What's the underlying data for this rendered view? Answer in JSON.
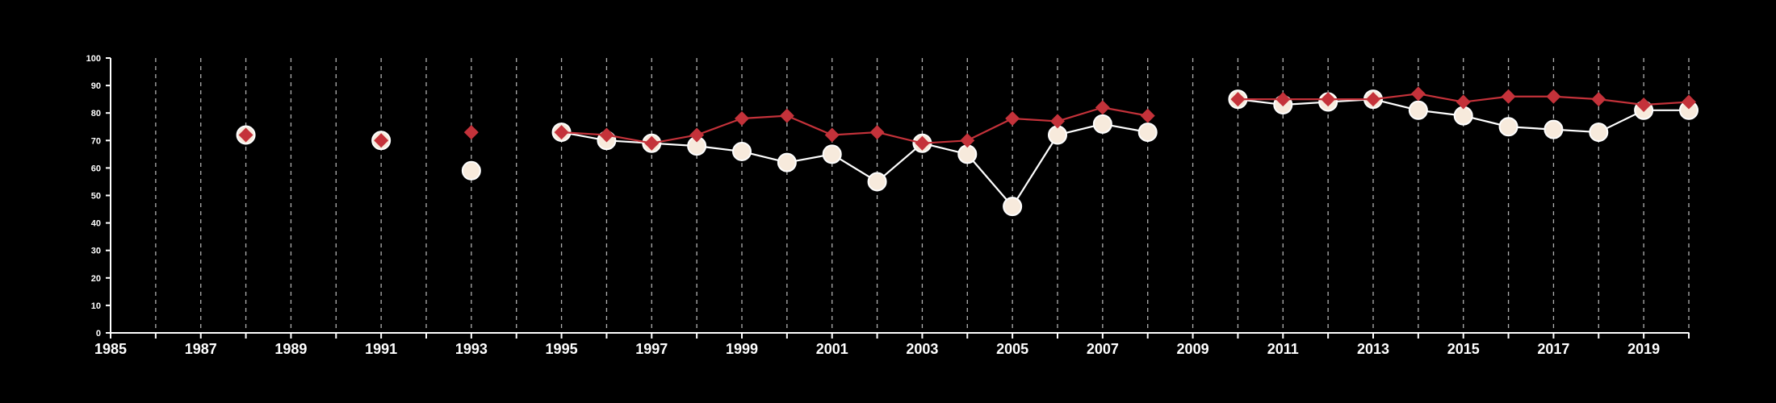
{
  "chart_data": {
    "type": "line",
    "title": "",
    "xlabel": "",
    "ylabel": "",
    "xlim": [
      1985,
      2020
    ],
    "ylim": [
      0,
      100
    ],
    "y_ticks": [
      0,
      10,
      20,
      30,
      40,
      50,
      60,
      70,
      80,
      90,
      100
    ],
    "x_tick_labels": [
      1985,
      1987,
      1989,
      1991,
      1993,
      1995,
      1997,
      1999,
      2001,
      2003,
      2005,
      2007,
      2009,
      2011,
      2013,
      2015,
      2017,
      2019
    ],
    "grid": "vertical dashed lines at every year",
    "legend": "none",
    "series": [
      {
        "marker": "circle",
        "color": "#ffffff",
        "fill": "#f7eadc",
        "points": [
          [
            1988,
            72
          ],
          [
            1991,
            70
          ],
          [
            1993,
            59
          ],
          [
            1995,
            73
          ],
          [
            1996,
            70
          ],
          [
            1997,
            69
          ],
          [
            1998,
            68
          ],
          [
            1999,
            66
          ],
          [
            2000,
            62
          ],
          [
            2001,
            65
          ],
          [
            2002,
            55
          ],
          [
            2003,
            69
          ],
          [
            2004,
            65
          ],
          [
            2005,
            46
          ],
          [
            2006,
            72
          ],
          [
            2007,
            76
          ],
          [
            2008,
            73
          ],
          [
            2010,
            85
          ],
          [
            2011,
            83
          ],
          [
            2012,
            84
          ],
          [
            2013,
            85
          ],
          [
            2014,
            81
          ],
          [
            2015,
            79
          ],
          [
            2016,
            75
          ],
          [
            2017,
            74
          ],
          [
            2018,
            73
          ],
          [
            2019,
            81
          ],
          [
            2020,
            81
          ]
        ]
      },
      {
        "marker": "diamond",
        "color": "#c4323a",
        "points": [
          [
            1988,
            72
          ],
          [
            1991,
            70
          ],
          [
            1993,
            73
          ],
          [
            1995,
            73
          ],
          [
            1996,
            72
          ],
          [
            1997,
            69
          ],
          [
            1998,
            72
          ],
          [
            1999,
            78
          ],
          [
            2000,
            79
          ],
          [
            2001,
            72
          ],
          [
            2002,
            73
          ],
          [
            2003,
            69
          ],
          [
            2004,
            70
          ],
          [
            2005,
            78
          ],
          [
            2006,
            77
          ],
          [
            2007,
            82
          ],
          [
            2008,
            79
          ],
          [
            2010,
            85
          ],
          [
            2011,
            85
          ],
          [
            2012,
            85
          ],
          [
            2013,
            85
          ],
          [
            2014,
            87
          ],
          [
            2015,
            84
          ],
          [
            2016,
            86
          ],
          [
            2017,
            86
          ],
          [
            2018,
            85
          ],
          [
            2019,
            83
          ],
          [
            2020,
            84
          ]
        ]
      }
    ]
  }
}
